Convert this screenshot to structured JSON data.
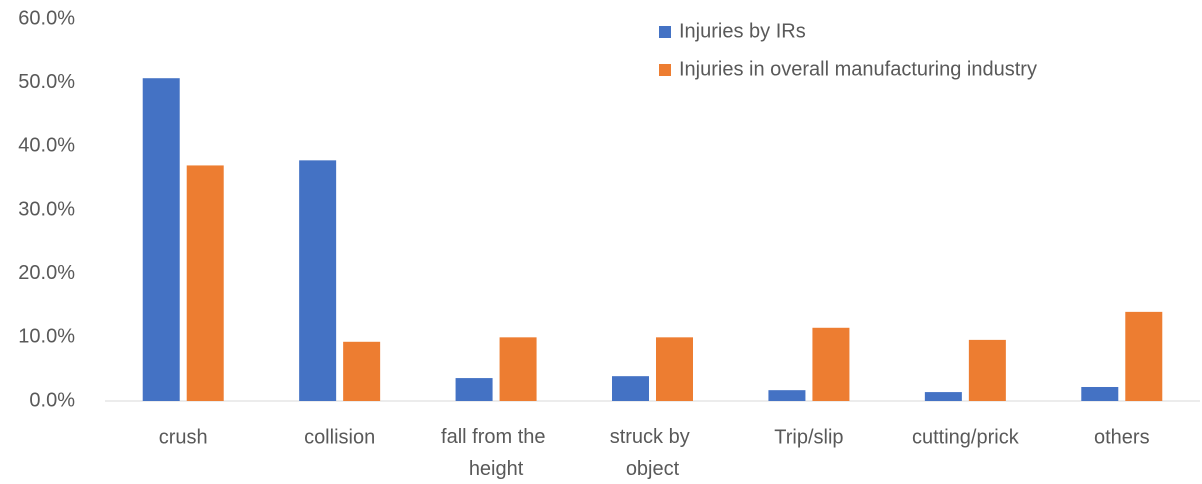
{
  "chart_data": {
    "type": "bar",
    "categories": [
      "crush",
      "collision",
      "fall from the height",
      "struck by object",
      "Trip/slip",
      "cutting/prick",
      "others"
    ],
    "series": [
      {
        "name": "Injuries by IRs",
        "color": "#4472c4",
        "values": [
          50.7,
          37.8,
          3.6,
          3.9,
          1.7,
          1.4,
          2.2
        ]
      },
      {
        "name": "Injuries in overall manufacturing industry",
        "color": "#ed7d31",
        "values": [
          37.0,
          9.3,
          10.0,
          10.0,
          11.5,
          9.6,
          14.0
        ]
      }
    ],
    "ylim": [
      0,
      60
    ],
    "yticks": [
      {
        "value": 0,
        "label": "0.0%"
      },
      {
        "value": 10,
        "label": "10.0%"
      },
      {
        "value": 20,
        "label": "20.0%"
      },
      {
        "value": 30,
        "label": "30.0%"
      },
      {
        "value": 40,
        "label": "40.0%"
      },
      {
        "value": 50,
        "label": "50.0%"
      },
      {
        "value": 60,
        "label": "60.0%"
      }
    ],
    "grid": false,
    "legend": "top-right"
  }
}
